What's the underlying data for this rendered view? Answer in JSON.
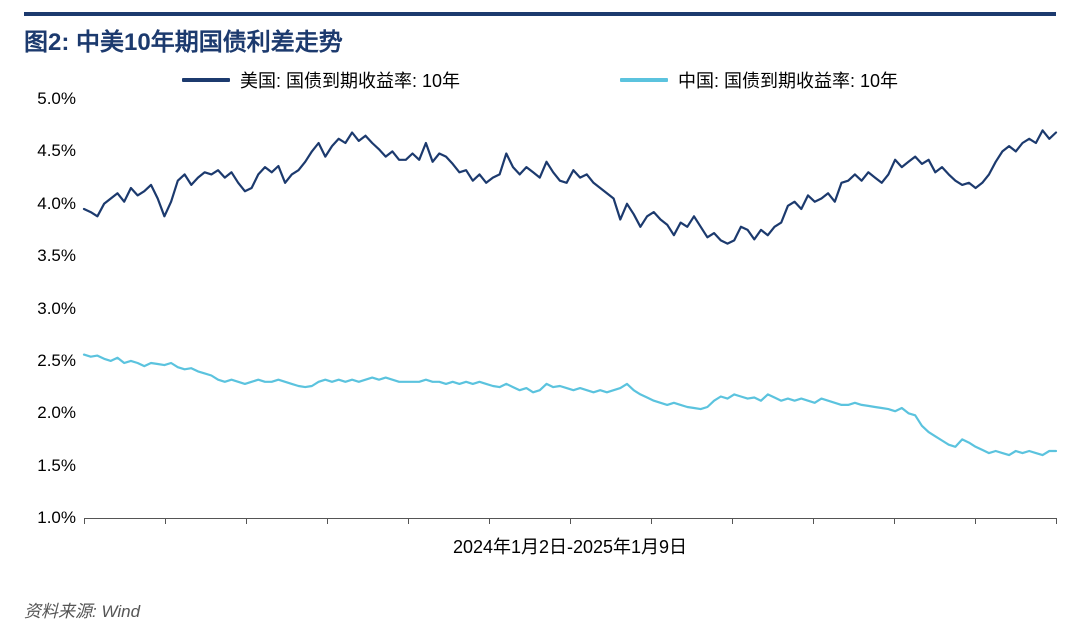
{
  "title": "图2: 中美10年期国债利差走势",
  "title_color": "#1c3a6e",
  "title_border_color": "#1c3a6e",
  "legend": {
    "items": [
      {
        "label": "美国: 国债到期收益率: 10年",
        "color": "#1c3a6e"
      },
      {
        "label": "中国: 国债到期收益率: 10年",
        "color": "#5bc3de"
      }
    ]
  },
  "source": "资料来源: Wind",
  "x_axis_label": "2024年1月2日-2025年1月9日",
  "chart": {
    "type": "line",
    "ylim": [
      1.0,
      5.0
    ],
    "ytick_step": 0.5,
    "ytick_suffix": "%",
    "y_tick_format_decimals": 1,
    "background_color": "#ffffff",
    "axis_color": "#555555",
    "tick_font_size": 17,
    "line_width": 2.2,
    "n_x_ticks": 12,
    "series": [
      {
        "name": "us",
        "color": "#1c3a6e",
        "values": [
          3.95,
          3.92,
          3.88,
          4.0,
          4.05,
          4.1,
          4.02,
          4.15,
          4.08,
          4.12,
          4.18,
          4.05,
          3.88,
          4.02,
          4.22,
          4.28,
          4.18,
          4.25,
          4.3,
          4.28,
          4.32,
          4.25,
          4.3,
          4.2,
          4.12,
          4.15,
          4.28,
          4.35,
          4.3,
          4.36,
          4.2,
          4.28,
          4.32,
          4.4,
          4.5,
          4.58,
          4.45,
          4.55,
          4.62,
          4.58,
          4.68,
          4.6,
          4.65,
          4.58,
          4.52,
          4.45,
          4.5,
          4.42,
          4.42,
          4.48,
          4.42,
          4.58,
          4.4,
          4.48,
          4.45,
          4.38,
          4.3,
          4.32,
          4.22,
          4.28,
          4.2,
          4.25,
          4.28,
          4.48,
          4.35,
          4.28,
          4.35,
          4.3,
          4.25,
          4.4,
          4.3,
          4.22,
          4.2,
          4.32,
          4.25,
          4.28,
          4.2,
          4.15,
          4.1,
          4.05,
          3.85,
          4.0,
          3.9,
          3.78,
          3.88,
          3.92,
          3.85,
          3.8,
          3.7,
          3.82,
          3.78,
          3.88,
          3.78,
          3.68,
          3.72,
          3.65,
          3.62,
          3.65,
          3.78,
          3.75,
          3.66,
          3.75,
          3.7,
          3.78,
          3.82,
          3.98,
          4.02,
          3.95,
          4.08,
          4.02,
          4.05,
          4.1,
          4.02,
          4.2,
          4.22,
          4.28,
          4.22,
          4.3,
          4.25,
          4.2,
          4.28,
          4.42,
          4.35,
          4.4,
          4.45,
          4.38,
          4.42,
          4.3,
          4.35,
          4.28,
          4.22,
          4.18,
          4.2,
          4.15,
          4.2,
          4.28,
          4.4,
          4.5,
          4.55,
          4.5,
          4.58,
          4.62,
          4.58,
          4.7,
          4.62,
          4.68
        ]
      },
      {
        "name": "cn",
        "color": "#5bc3de",
        "values": [
          2.56,
          2.54,
          2.55,
          2.52,
          2.5,
          2.53,
          2.48,
          2.5,
          2.48,
          2.45,
          2.48,
          2.47,
          2.46,
          2.48,
          2.44,
          2.42,
          2.43,
          2.4,
          2.38,
          2.36,
          2.32,
          2.3,
          2.32,
          2.3,
          2.28,
          2.3,
          2.32,
          2.3,
          2.3,
          2.32,
          2.3,
          2.28,
          2.26,
          2.25,
          2.26,
          2.3,
          2.32,
          2.3,
          2.32,
          2.3,
          2.32,
          2.3,
          2.32,
          2.34,
          2.32,
          2.34,
          2.32,
          2.3,
          2.3,
          2.3,
          2.3,
          2.32,
          2.3,
          2.3,
          2.28,
          2.3,
          2.28,
          2.3,
          2.28,
          2.3,
          2.28,
          2.26,
          2.25,
          2.28,
          2.25,
          2.22,
          2.24,
          2.2,
          2.22,
          2.28,
          2.25,
          2.26,
          2.24,
          2.22,
          2.24,
          2.22,
          2.2,
          2.22,
          2.2,
          2.22,
          2.24,
          2.28,
          2.22,
          2.18,
          2.15,
          2.12,
          2.1,
          2.08,
          2.1,
          2.08,
          2.06,
          2.05,
          2.04,
          2.06,
          2.12,
          2.16,
          2.14,
          2.18,
          2.16,
          2.14,
          2.15,
          2.12,
          2.18,
          2.15,
          2.12,
          2.14,
          2.12,
          2.14,
          2.12,
          2.1,
          2.14,
          2.12,
          2.1,
          2.08,
          2.08,
          2.1,
          2.08,
          2.07,
          2.06,
          2.05,
          2.04,
          2.02,
          2.05,
          2.0,
          1.98,
          1.88,
          1.82,
          1.78,
          1.74,
          1.7,
          1.68,
          1.75,
          1.72,
          1.68,
          1.65,
          1.62,
          1.64,
          1.62,
          1.6,
          1.64,
          1.62,
          1.64,
          1.62,
          1.6,
          1.64,
          1.64
        ]
      }
    ]
  }
}
